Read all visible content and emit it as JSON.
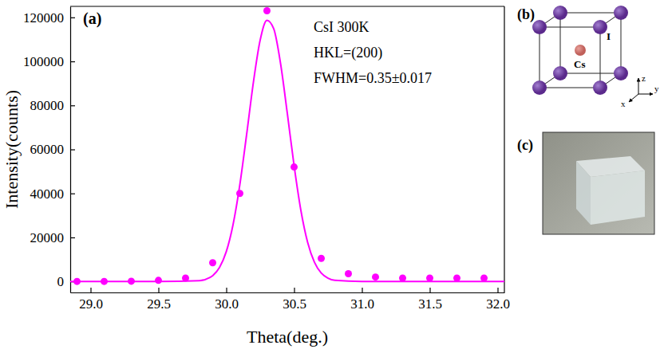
{
  "chart_data": {
    "type": "scatter",
    "panel_label": "(a)",
    "x_label": "Theta(deg.)",
    "y_label": "Intensity(counts)",
    "annotations": [
      "CsI 300K",
      "HKL=(200)",
      "FWHM=0.35±0.017"
    ],
    "xlim": [
      28.85,
      32.05
    ],
    "ylim": [
      -5000,
      125000
    ],
    "xticks": [
      {
        "value": 29,
        "label": "29.0"
      },
      29.5,
      {
        "value": 30,
        "label": "30.0"
      },
      30.5,
      {
        "value": 31,
        "label": "31.0"
      },
      31.5,
      {
        "value": 32,
        "label": "32.0"
      }
    ],
    "yticks": [
      0,
      20000,
      40000,
      60000,
      80000,
      100000,
      120000
    ],
    "grid": false,
    "series": [
      {
        "type": "scatter",
        "color": "#ff00ff",
        "marker": "circle",
        "x": [
          28.9,
          29.1,
          29.3,
          29.5,
          29.7,
          29.9,
          30.1,
          30.3,
          30.5,
          30.7,
          30.9,
          31.1,
          31.3,
          31.5,
          31.7,
          31.9
        ],
        "values": [
          0,
          0,
          100,
          500,
          1500,
          8500,
          40000,
          123000,
          52000,
          10500,
          3500,
          2000,
          1500,
          1500,
          1500,
          1500
        ]
      },
      {
        "type": "line",
        "color": "#ff00ff",
        "line_style": "solid",
        "x": [
          28.85,
          29.5,
          29.8,
          29.85,
          29.9,
          29.95,
          30.0,
          30.05,
          30.1,
          30.15,
          30.2,
          30.25,
          30.3,
          30.35,
          30.4,
          30.45,
          30.5,
          30.55,
          30.6,
          30.65,
          30.7,
          30.75,
          30.8,
          31.0,
          32.05
        ],
        "values": [
          0,
          0,
          330,
          990,
          2640,
          6330,
          13500,
          25800,
          43900,
          66700,
          90500,
          109700,
          118700,
          114800,
          99100,
          76400,
          52600,
          32300,
          17700,
          8700,
          3800,
          1490,
          520,
          0,
          0
        ]
      }
    ]
  },
  "diagram": {
    "label": "(b)",
    "atoms": [
      {
        "label": "I",
        "color": "#5b2a8c"
      },
      {
        "label": "Cs",
        "color": "#c0605a"
      }
    ],
    "axes": [
      "z",
      "y",
      "x"
    ]
  },
  "photo": {
    "label": "(c)"
  }
}
